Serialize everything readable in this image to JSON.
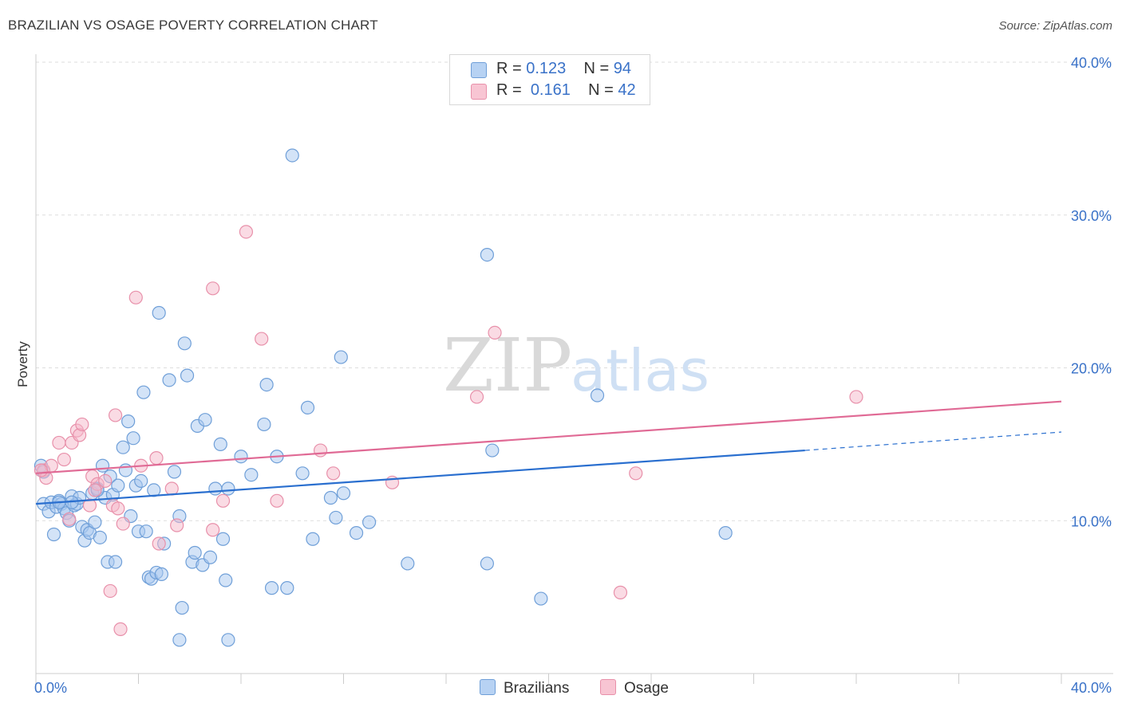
{
  "title": "BRAZILIAN VS OSAGE POVERTY CORRELATION CHART",
  "source": "Source: ZipAtlas.com",
  "watermark": {
    "zip": "ZIP",
    "atlas": "atlas"
  },
  "colors": {
    "blue_fill": "#a8c8f0",
    "blue_stroke": "#6f9fd8",
    "blue_line": "#2a6fcf",
    "pink_fill": "#f6b8ca",
    "pink_stroke": "#e890aa",
    "pink_line": "#e06a95",
    "axis_text": "#3a72c8",
    "grid": "#dddddd"
  },
  "legend_top": [
    {
      "r_label": "R =",
      "r_value": "0.123",
      "n_label": "N =",
      "n_value": "94",
      "color": "blue"
    },
    {
      "r_label": "R =",
      "r_value": "0.161",
      "n_label": "N =",
      "n_value": "42",
      "color": "pink"
    }
  ],
  "legend_bottom": [
    "Brazilians",
    "Osage"
  ],
  "chart_data": {
    "type": "scatter",
    "title": "BRAZILIAN VS OSAGE POVERTY CORRELATION CHART",
    "ylabel": "Poverty",
    "xlabel": "",
    "xlim": [
      0,
      40
    ],
    "ylim": [
      0,
      40
    ],
    "x_tick_labels": [
      "0.0%",
      "40.0%"
    ],
    "y_tick_labels": [
      "10.0%",
      "20.0%",
      "30.0%",
      "40.0%"
    ],
    "y_ticks": [
      10,
      20,
      30,
      40
    ],
    "grid": "horizontal dashed",
    "series": [
      {
        "name": "Brazilians",
        "r": 0.123,
        "n": 94,
        "trend": {
          "x0": 0,
          "y0": 11.1,
          "x1": 30,
          "y1": 14.6,
          "dashed_to": {
            "x": 40,
            "y": 15.8
          }
        },
        "points": [
          [
            0.2,
            13.6
          ],
          [
            0.3,
            13.2
          ],
          [
            0.3,
            11.1
          ],
          [
            0.5,
            10.6
          ],
          [
            0.6,
            11.2
          ],
          [
            0.7,
            9.1
          ],
          [
            0.8,
            10.9
          ],
          [
            0.9,
            11.3
          ],
          [
            1.0,
            11.1
          ],
          [
            1.1,
            10.8
          ],
          [
            1.2,
            10.5
          ],
          [
            1.3,
            10.0
          ],
          [
            1.4,
            11.6
          ],
          [
            1.5,
            11.0
          ],
          [
            1.6,
            11.1
          ],
          [
            1.7,
            11.5
          ],
          [
            1.8,
            9.6
          ],
          [
            1.9,
            8.7
          ],
          [
            2.0,
            9.4
          ],
          [
            2.1,
            9.2
          ],
          [
            2.2,
            11.8
          ],
          [
            2.3,
            9.9
          ],
          [
            2.4,
            12.1
          ],
          [
            2.5,
            8.9
          ],
          [
            2.6,
            13.6
          ],
          [
            2.7,
            11.5
          ],
          [
            2.8,
            7.3
          ],
          [
            2.9,
            12.9
          ],
          [
            3.0,
            11.7
          ],
          [
            3.1,
            7.3
          ],
          [
            3.2,
            12.3
          ],
          [
            3.4,
            14.8
          ],
          [
            3.5,
            13.3
          ],
          [
            3.6,
            16.5
          ],
          [
            3.7,
            10.3
          ],
          [
            3.8,
            15.4
          ],
          [
            3.9,
            12.3
          ],
          [
            4.0,
            9.3
          ],
          [
            4.1,
            12.6
          ],
          [
            4.2,
            18.4
          ],
          [
            4.3,
            9.3
          ],
          [
            4.4,
            6.3
          ],
          [
            4.5,
            6.2
          ],
          [
            4.6,
            12.0
          ],
          [
            4.7,
            6.6
          ],
          [
            4.8,
            23.6
          ],
          [
            4.9,
            6.5
          ],
          [
            5.0,
            8.5
          ],
          [
            5.2,
            19.2
          ],
          [
            5.4,
            13.2
          ],
          [
            5.6,
            10.3
          ],
          [
            5.7,
            4.3
          ],
          [
            5.8,
            21.6
          ],
          [
            5.9,
            19.5
          ],
          [
            6.1,
            7.3
          ],
          [
            6.2,
            7.9
          ],
          [
            6.3,
            16.2
          ],
          [
            6.5,
            7.1
          ],
          [
            6.6,
            16.6
          ],
          [
            6.8,
            7.6
          ],
          [
            7.0,
            12.1
          ],
          [
            7.2,
            15.0
          ],
          [
            7.3,
            8.8
          ],
          [
            7.4,
            6.1
          ],
          [
            7.5,
            12.1
          ],
          [
            8.0,
            14.2
          ],
          [
            8.4,
            13.0
          ],
          [
            8.9,
            16.3
          ],
          [
            9.0,
            18.9
          ],
          [
            9.2,
            5.6
          ],
          [
            9.4,
            14.2
          ],
          [
            9.8,
            5.6
          ],
          [
            10.0,
            33.9
          ],
          [
            10.4,
            13.1
          ],
          [
            10.6,
            17.4
          ],
          [
            10.8,
            8.8
          ],
          [
            11.5,
            11.5
          ],
          [
            11.7,
            10.2
          ],
          [
            11.9,
            20.7
          ],
          [
            12.0,
            11.8
          ],
          [
            12.5,
            9.2
          ],
          [
            13.0,
            9.9
          ],
          [
            14.5,
            7.2
          ],
          [
            17.6,
            7.2
          ],
          [
            17.6,
            27.4
          ],
          [
            17.8,
            14.6
          ],
          [
            19.7,
            4.9
          ],
          [
            21.9,
            18.2
          ],
          [
            26.9,
            9.2
          ],
          [
            5.6,
            2.2
          ],
          [
            7.5,
            2.2
          ],
          [
            1.4,
            11.2
          ],
          [
            2.4,
            12.0
          ],
          [
            0.9,
            11.2
          ]
        ]
      },
      {
        "name": "Osage",
        "r": 0.161,
        "n": 42,
        "trend": {
          "x0": 0,
          "y0": 13.1,
          "x1": 40,
          "y1": 17.8
        },
        "points": [
          [
            0.3,
            13.3
          ],
          [
            0.4,
            12.8
          ],
          [
            0.6,
            13.6
          ],
          [
            0.9,
            15.1
          ],
          [
            1.1,
            14.0
          ],
          [
            1.3,
            10.1
          ],
          [
            1.4,
            15.1
          ],
          [
            1.6,
            15.9
          ],
          [
            1.7,
            15.6
          ],
          [
            1.8,
            16.3
          ],
          [
            2.1,
            11.0
          ],
          [
            2.2,
            12.9
          ],
          [
            2.4,
            12.4
          ],
          [
            2.7,
            12.6
          ],
          [
            2.9,
            5.4
          ],
          [
            3.0,
            11.0
          ],
          [
            3.1,
            16.9
          ],
          [
            3.3,
            2.9
          ],
          [
            3.4,
            9.8
          ],
          [
            3.9,
            24.6
          ],
          [
            4.1,
            13.6
          ],
          [
            4.7,
            14.1
          ],
          [
            4.8,
            8.5
          ],
          [
            5.3,
            12.1
          ],
          [
            5.5,
            9.7
          ],
          [
            6.9,
            9.4
          ],
          [
            6.9,
            25.2
          ],
          [
            7.3,
            11.3
          ],
          [
            8.2,
            28.9
          ],
          [
            8.8,
            21.9
          ],
          [
            9.4,
            11.3
          ],
          [
            11.1,
            14.6
          ],
          [
            11.6,
            13.1
          ],
          [
            13.9,
            12.5
          ],
          [
            17.2,
            18.1
          ],
          [
            17.9,
            22.3
          ],
          [
            22.8,
            5.3
          ],
          [
            23.4,
            13.1
          ],
          [
            32.0,
            18.1
          ],
          [
            0.2,
            13.3
          ],
          [
            2.3,
            12.0
          ],
          [
            3.2,
            10.8
          ]
        ]
      }
    ]
  }
}
